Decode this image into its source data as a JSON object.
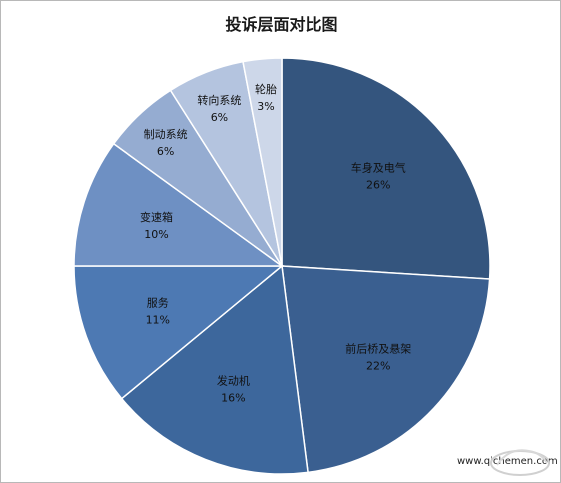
{
  "chart_data": {
    "type": "pie",
    "title": "投诉层面对比图",
    "start_angle_deg": 0,
    "direction": "clockwise",
    "slices": [
      {
        "label": "车身及电气",
        "value": 26,
        "value_label": "26%",
        "color": "#34557e"
      },
      {
        "label": "前后桥及悬架",
        "value": 22,
        "value_label": "22%",
        "color": "#3a5f90"
      },
      {
        "label": "发动机",
        "value": 16,
        "value_label": "16%",
        "color": "#3d679c"
      },
      {
        "label": "服务",
        "value": 11,
        "value_label": "11%",
        "color": "#4d79b3"
      },
      {
        "label": "变速箱",
        "value": 10,
        "value_label": "10%",
        "color": "#6e90c3"
      },
      {
        "label": "制动系统",
        "value": 6,
        "value_label": "6%",
        "color": "#95acd1"
      },
      {
        "label": "转向系统",
        "value": 6,
        "value_label": "6%",
        "color": "#b4c4df"
      },
      {
        "label": "轮胎",
        "value": 3,
        "value_label": "3%",
        "color": "#cdd7e9"
      }
    ]
  },
  "watermark": {
    "text": "www.qichemen.com"
  }
}
